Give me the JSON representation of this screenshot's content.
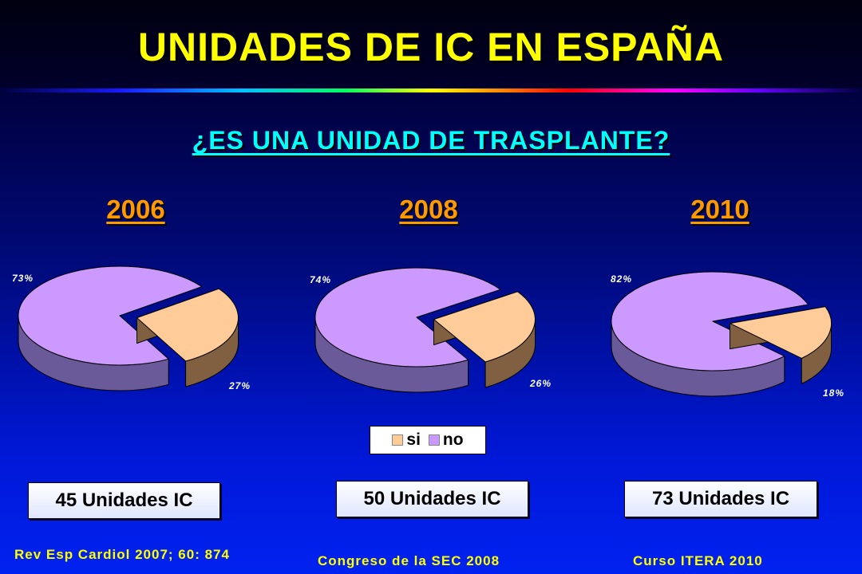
{
  "header": {
    "title": "UNIDADES DE IC EN ESPAÑA",
    "subtitle": "¿ES UNA UNIDAD DE TRASPLANTE?"
  },
  "colors": {
    "si": "#ffcc99",
    "no": "#cc99ff",
    "title": "#ffff00",
    "subtitle": "#00ffff",
    "year": "#ff9900"
  },
  "chart_data": [
    {
      "type": "pie",
      "title": "2006",
      "categories": [
        "si",
        "no"
      ],
      "values": [
        27,
        73
      ],
      "labels": [
        "27%",
        "73%"
      ],
      "legend": "bottom-center"
    },
    {
      "type": "pie",
      "title": "2008",
      "categories": [
        "si",
        "no"
      ],
      "values": [
        26,
        74
      ],
      "labels": [
        "26%",
        "74%"
      ],
      "legend": "bottom-center"
    },
    {
      "type": "pie",
      "title": "2010",
      "categories": [
        "si",
        "no"
      ],
      "values": [
        18,
        82
      ],
      "labels": [
        "18%",
        "82%"
      ],
      "legend": "bottom-center"
    }
  ],
  "legend": {
    "items": [
      "si",
      "no"
    ]
  },
  "units": [
    "45 Unidades IC",
    "50 Unidades IC",
    "73 Unidades IC"
  ],
  "sources": [
    "Rev Esp Cardiol 2007; 60: 874",
    "Congreso de la SEC 2008",
    "Curso ITERA 2010"
  ]
}
